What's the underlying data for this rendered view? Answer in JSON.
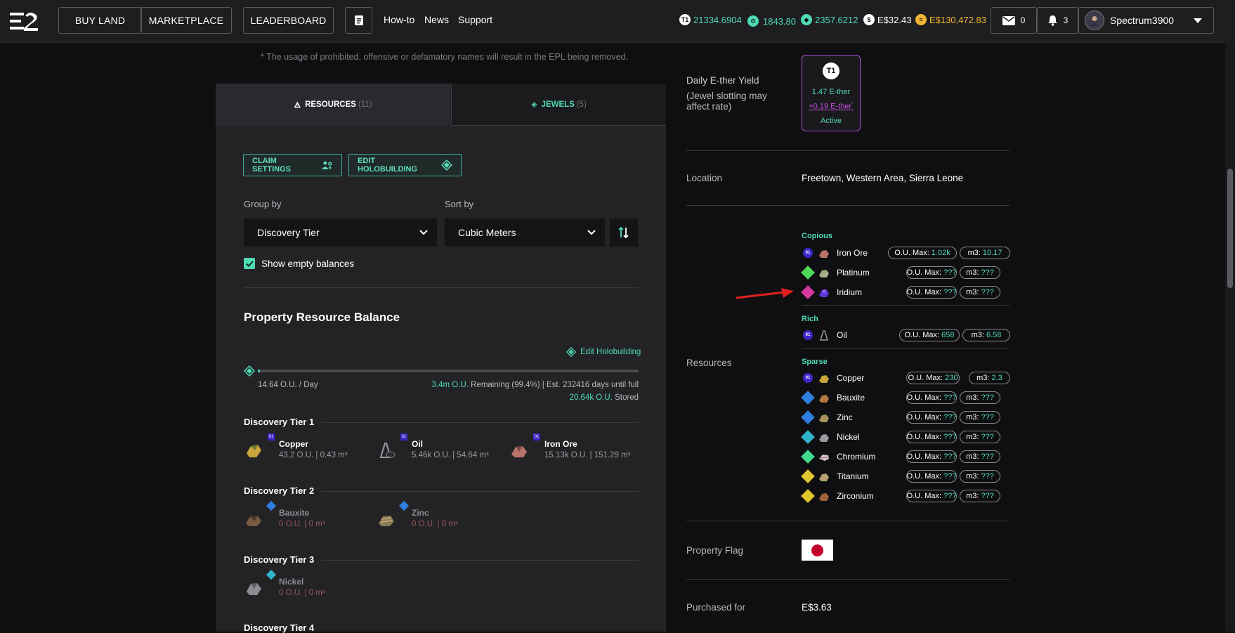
{
  "nav": {
    "buy_land": "BUY LAND",
    "marketplace": "MARKETPLACE",
    "leaderboard": "LEADERBOARD",
    "howto": "How-to",
    "news": "News",
    "support": "Support",
    "balances": [
      {
        "icon": "t1-token-icon",
        "value": "21334.6904",
        "color": "#4fd9b5"
      },
      {
        "icon": "gear-token-icon",
        "value": "1843.80",
        "color": "#4fd9b5"
      },
      {
        "icon": "essence-icon",
        "value": "2357.6212",
        "color": "#4fd9b5"
      },
      {
        "icon": "dollar-icon",
        "value": "E$32.43",
        "color": "#ffffff"
      },
      {
        "icon": "coin-icon",
        "value": "E$130,472.83",
        "color": "#f2b632"
      }
    ],
    "mail_count": "0",
    "notif_count": "3",
    "username": "Spectrum3900"
  },
  "left": {
    "note": "* The usage of prohibited, offensive or defamatory names will result in the EPL being removed.",
    "tabs": {
      "resources": "RESOURCES",
      "resources_count": "(11)",
      "jewels": "JEWELS",
      "jewels_count": "(5)"
    },
    "claim_settings": "CLAIM SETTINGS",
    "edit_holobuilding": "EDIT HOLOBUILDING",
    "group_by_label": "Group by",
    "group_by_value": "Discovery Tier",
    "sort_by_label": "Sort by",
    "sort_by_value": "Cubic Meters",
    "show_empty": "Show empty balances",
    "balance_title": "Property Resource Balance",
    "edit_holo_link": "Edit Holobuilding",
    "rate": "14.64 O.U. / Day",
    "remaining_amount": "3.4m O.U.",
    "remaining_text": " Remaining (99.4%) | Est. 232416 days until full",
    "stored_amount": "20.64k O.U.",
    "stored_text": " Stored",
    "progress_fraction": 0.006,
    "tiers": [
      {
        "title": "Discovery Tier 1",
        "items": [
          {
            "name": "Copper",
            "value": "43.2 O.U.  |  0.43 m³",
            "badge": "01"
          },
          {
            "name": "Oil",
            "value": "5.46k O.U.  |  54.64 m³",
            "badge": "01"
          },
          {
            "name": "Iron Ore",
            "value": "15.13k O.U.  |  151.29 m³",
            "badge": "01"
          }
        ]
      },
      {
        "title": "Discovery Tier 2",
        "items": [
          {
            "name": "Bauxite",
            "value": "0 O.U.  |  0 m³",
            "badge": ""
          },
          {
            "name": "Zinc",
            "value": "0 O.U.  |  0 m³",
            "badge": ""
          }
        ]
      },
      {
        "title": "Discovery Tier 3",
        "items": [
          {
            "name": "Nickel",
            "value": "0 O.U.  |  0 m³",
            "badge": ""
          }
        ]
      },
      {
        "title": "Discovery Tier 4",
        "items": []
      }
    ]
  },
  "right": {
    "yield_label": "Daily E-ther Yield",
    "yield_sublabel": "(Jewel slotting may affect rate)",
    "yield_tier": "T1",
    "yield_value": "1.47 E-ther",
    "yield_bonus": "+0.19 E-ther",
    "yield_bonus_mark": "*",
    "yield_status": "Active",
    "location_label": "Location",
    "location_value": "Freetown, Western Area, Sierra Leone",
    "resources_label": "Resources",
    "ou_label": "O.U. Max:",
    "m3_label": "m3:",
    "groups": [
      {
        "name": "Copious",
        "rows": [
          {
            "name": "Iron Ore",
            "tier": "01",
            "ou": "1.02k",
            "m3": "10.17",
            "color": "#3b27c9"
          },
          {
            "name": "Platinum",
            "tier": "04",
            "ou": "???",
            "m3": "???",
            "color": "#4fd95a"
          },
          {
            "name": "Iridium",
            "tier": "05",
            "ou": "???",
            "m3": "???",
            "color": "#d63aa0"
          }
        ]
      },
      {
        "name": "Rich",
        "rows": [
          {
            "name": "Oil",
            "tier": "01",
            "ou": "658",
            "m3": "6.58",
            "color": "#3b27c9"
          }
        ]
      },
      {
        "name": "Sparse",
        "rows": [
          {
            "name": "Copper",
            "tier": "01",
            "ou": "230",
            "m3": "2.3",
            "color": "#3b27c9"
          },
          {
            "name": "Bauxite",
            "tier": "02",
            "ou": "???",
            "m3": "???",
            "color": "#2f7ee0"
          },
          {
            "name": "Zinc",
            "tier": "02",
            "ou": "???",
            "m3": "???",
            "color": "#2f7ee0"
          },
          {
            "name": "Nickel",
            "tier": "03",
            "ou": "???",
            "m3": "???",
            "color": "#2fb4c9"
          },
          {
            "name": "Chromium",
            "tier": "04",
            "ou": "???",
            "m3": "???",
            "color": "#3fd98a"
          },
          {
            "name": "Titanium",
            "tier": "04",
            "ou": "???",
            "m3": "???",
            "color": "#e0c52f"
          },
          {
            "name": "Zirconium",
            "tier": "04",
            "ou": "???",
            "m3": "???",
            "color": "#e0c52f"
          }
        ]
      }
    ],
    "flag_label": "Property Flag",
    "purchased_label": "Purchased for",
    "purchased_value": "E$3.63"
  }
}
